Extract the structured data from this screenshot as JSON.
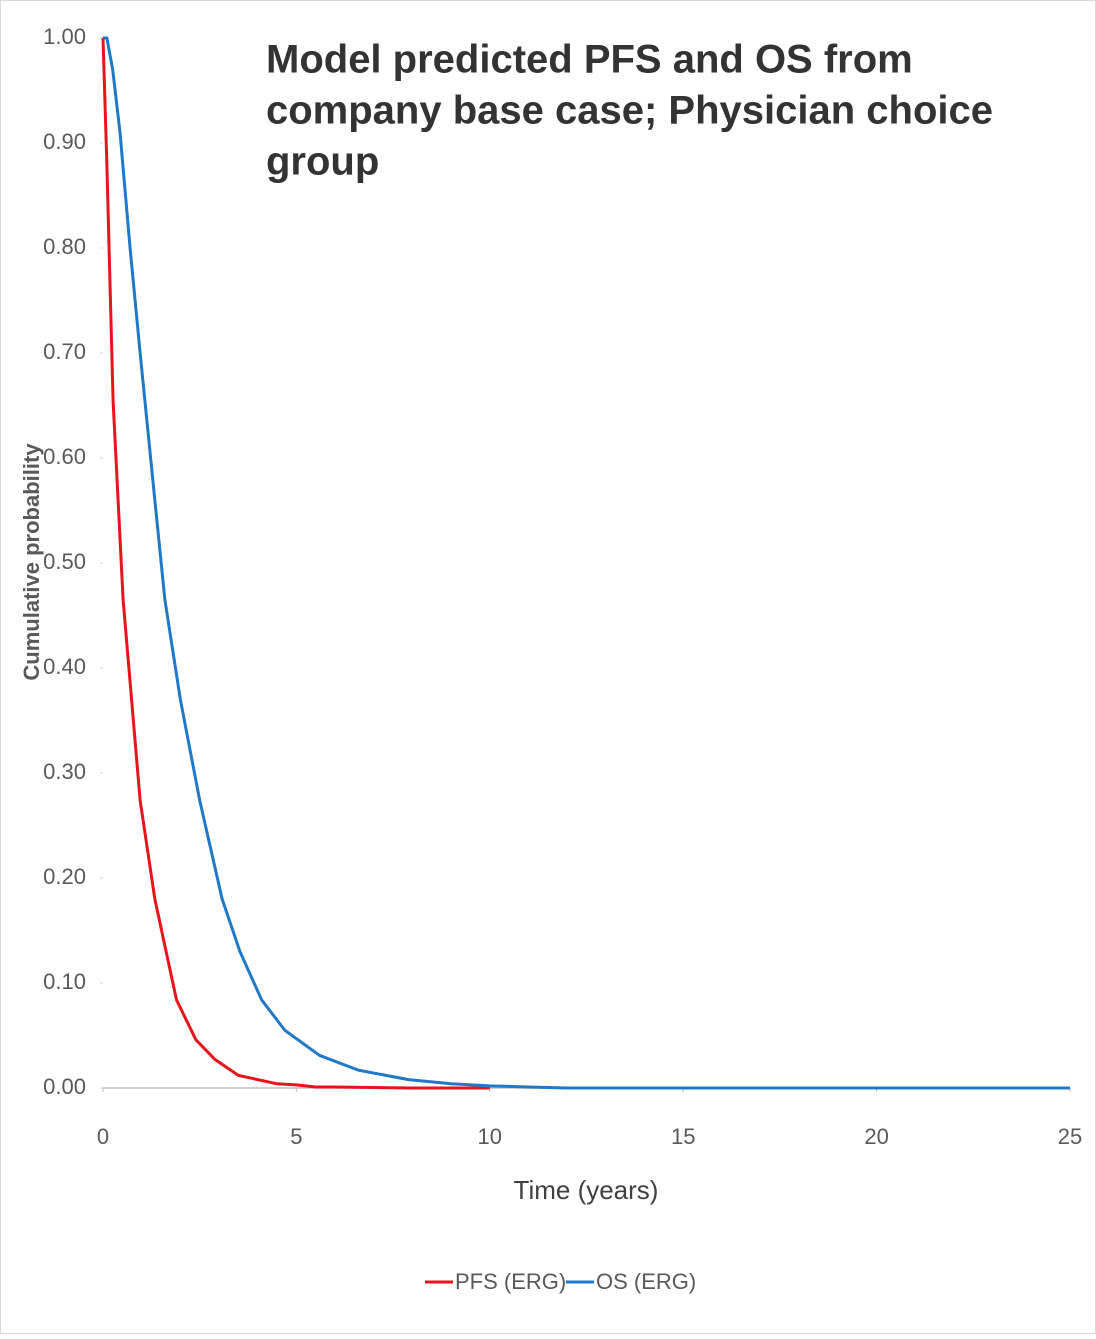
{
  "chart_data": {
    "type": "line",
    "title": "Model predicted PFS and OS from company base case; Physician choice group",
    "title_lines": [
      "Model predicted PFS and OS from",
      "company base case; Physician choice",
      "group"
    ],
    "x_label": "Time (years)",
    "y_label": "Cumulative probability",
    "xlim": [
      0,
      25
    ],
    "xticks": [
      0,
      5,
      10,
      15,
      20,
      25
    ],
    "ylim": [
      0,
      1
    ],
    "yticks": [
      {
        "value": 0,
        "label": "0.00"
      },
      {
        "value": 0.1,
        "label": "0.10"
      },
      {
        "value": 0.2,
        "label": "0.20"
      },
      {
        "value": 0.3,
        "label": "0.30"
      },
      {
        "value": 0.4,
        "label": "0.40"
      },
      {
        "value": 0.5,
        "label": "0.50"
      },
      {
        "value": 0.6,
        "label": "0.60"
      },
      {
        "value": 0.7,
        "label": "0.70"
      },
      {
        "value": 0.8,
        "label": "0.80"
      },
      {
        "value": 0.9,
        "label": "0.90"
      },
      {
        "value": 1,
        "label": "1.00"
      }
    ],
    "legend": "bottom",
    "series": [
      {
        "name": "PFS (ERG)",
        "color": "#e8141b",
        "x": [
          0,
          0.1,
          0.26,
          0.52,
          0.96,
          1.34,
          1.9,
          2.4,
          2.9,
          3.5,
          4.5,
          5,
          5.5,
          6,
          8,
          10
        ],
        "values": [
          1.0,
          0.88,
          0.655,
          0.465,
          0.274,
          0.18,
          0.084,
          0.046,
          0.027,
          0.012,
          0.004,
          0.003,
          0.001,
          0.001,
          0,
          0
        ]
      },
      {
        "name": "OS (ERG)",
        "color": "#1f78c8",
        "x": [
          0,
          0.1,
          0.25,
          0.44,
          0.7,
          0.96,
          1.34,
          1.6,
          2.0,
          2.5,
          3.08,
          3.54,
          4.1,
          4.7,
          5.6,
          6.6,
          7.9,
          9,
          10,
          11,
          12,
          25
        ],
        "values": [
          1.0,
          1.0,
          0.97,
          0.91,
          0.8,
          0.7,
          0.56,
          0.465,
          0.37,
          0.274,
          0.18,
          0.13,
          0.084,
          0.055,
          0.031,
          0.017,
          0.008,
          0.004,
          0.002,
          0.001,
          0,
          0
        ]
      }
    ]
  }
}
